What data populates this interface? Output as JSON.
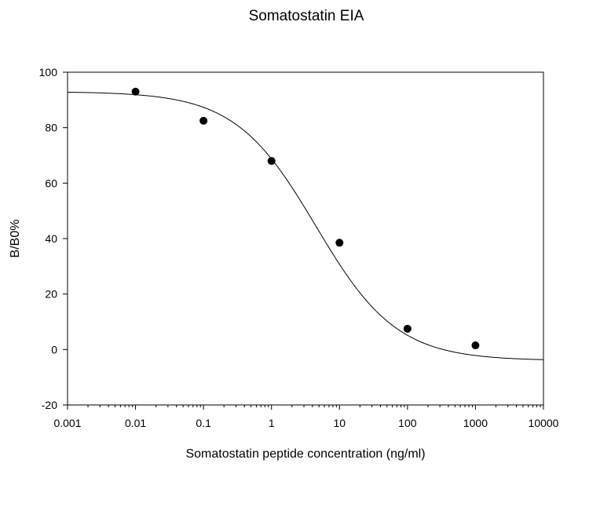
{
  "chart_data": {
    "type": "scatter",
    "title": "Somatostatin EIA",
    "xlabel": "Somatostatin peptide concentration (ng/ml)",
    "ylabel": "B/B0%",
    "x_scale": "log",
    "xlim": [
      0.001,
      10000
    ],
    "ylim": [
      -20,
      100
    ],
    "x_ticks": [
      "0.001",
      "0.01",
      "0.1",
      "1",
      "10",
      "100",
      "1000",
      "10000"
    ],
    "y_ticks": [
      "-20",
      "0",
      "20",
      "40",
      "60",
      "80",
      "100"
    ],
    "grid": false,
    "legend": "none",
    "series": [
      {
        "points": [
          {
            "x": 0.01,
            "y": 93
          },
          {
            "x": 0.1,
            "y": 82.5
          },
          {
            "x": 1,
            "y": 68
          },
          {
            "x": 10,
            "y": 38.5
          },
          {
            "x": 100,
            "y": 7.5
          },
          {
            "x": 1000,
            "y": 1.5
          }
        ],
        "color": "#000000"
      }
    ],
    "fit_curve": {
      "type": "4PL",
      "top": 93,
      "bottom": -4,
      "ec50": 4.5,
      "hill": 0.73,
      "color": "#000000"
    }
  }
}
